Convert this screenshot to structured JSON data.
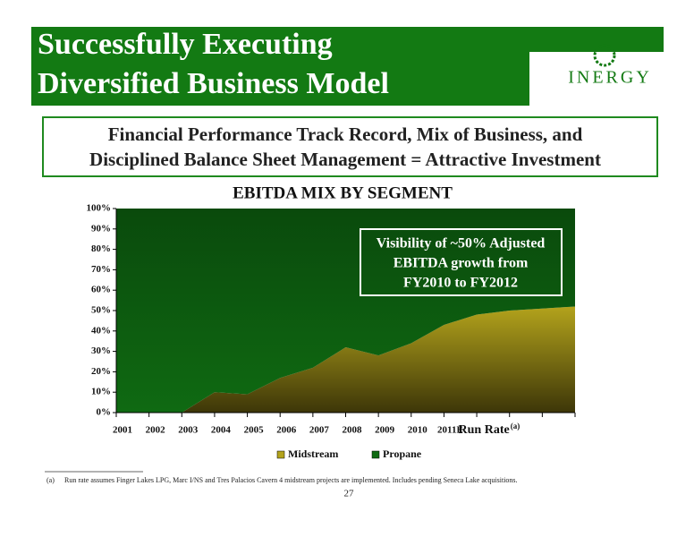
{
  "header": {
    "title_line1": "Successfully Executing",
    "title_line2": "Diversified Business Model",
    "logo": "INERGY"
  },
  "subtitle": {
    "line1": "Financial Performance Track Record, Mix of Business, and",
    "line2": "Disciplined Balance Sheet Management = Attractive Investment"
  },
  "chart_data": {
    "type": "area",
    "stacked": true,
    "title": "EBITDA MIX BY SEGMENT",
    "categories": [
      "2001",
      "2002",
      "2003",
      "2004",
      "2005",
      "2006",
      "2007",
      "2008",
      "2009",
      "2010",
      "2011E",
      null,
      "Run Rate",
      null,
      null
    ],
    "category_superscript": "(a)",
    "series": [
      {
        "name": "Midstream",
        "color": "#b3a31c",
        "values": [
          0,
          0,
          0,
          10,
          9,
          17,
          22,
          32,
          28,
          34,
          43,
          48,
          50,
          51,
          52
        ]
      },
      {
        "name": "Propane",
        "color": "#0f6a12",
        "values": [
          100,
          100,
          100,
          90,
          91,
          83,
          78,
          68,
          72,
          66,
          57,
          52,
          50,
          49,
          48
        ]
      }
    ],
    "ylim": [
      0,
      100
    ],
    "yticks": [
      {
        "value": 0,
        "label": "0%"
      },
      {
        "value": 10,
        "label": "10%"
      },
      {
        "value": 20,
        "label": "20%"
      },
      {
        "value": 30,
        "label": "30%"
      },
      {
        "value": 40,
        "label": "40%"
      },
      {
        "value": 50,
        "label": "50%"
      },
      {
        "value": 60,
        "label": "60%"
      },
      {
        "value": 70,
        "label": "70%"
      },
      {
        "value": 80,
        "label": "80%"
      },
      {
        "value": 90,
        "label": "90%"
      },
      {
        "value": 100,
        "label": "100%"
      }
    ],
    "annotation": {
      "line1": "Visibility of ~50% Adjusted",
      "line2": "EBITDA growth from",
      "line3": "FY2010 to FY2012"
    },
    "legend": "bottom"
  },
  "footnote": {
    "marker": "(a)",
    "text": "Run rate assumes Finger Lakes LPG, Marc I/NS and Tres Palacios Cavern 4 midstream projects are implemented.  Includes pending Seneca Lake acquisitions."
  },
  "page_number": "27"
}
